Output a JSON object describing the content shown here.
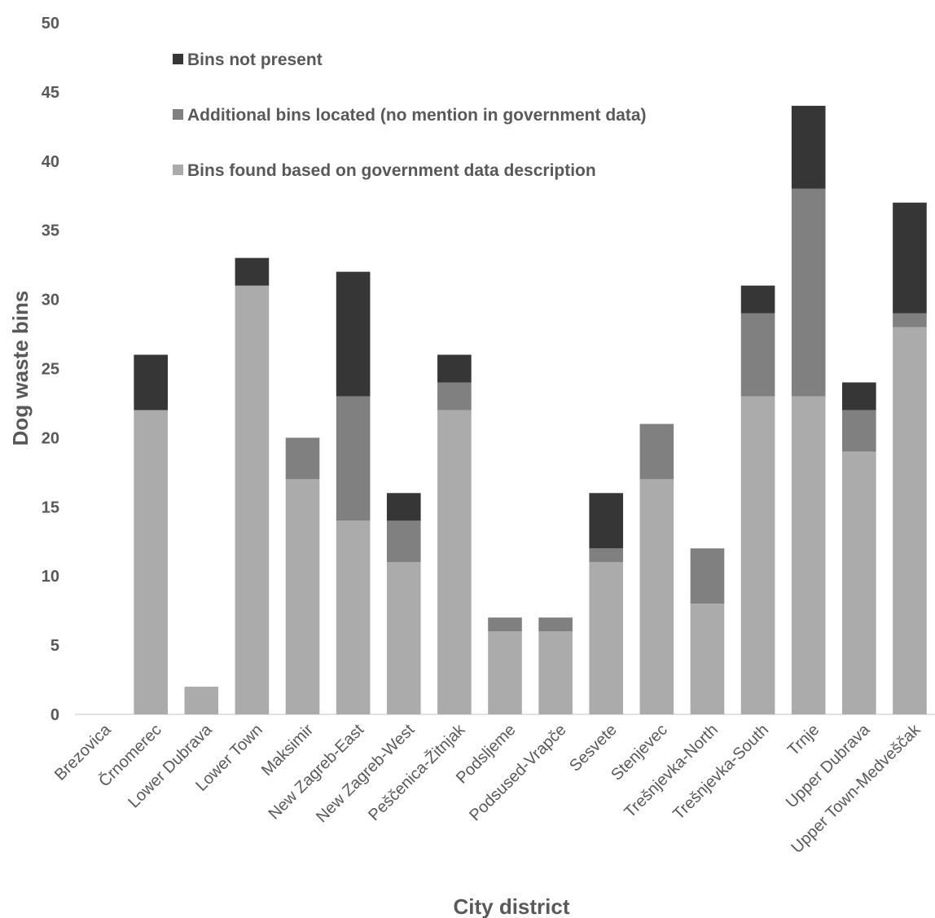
{
  "chart_data": {
    "type": "bar",
    "stacked": true,
    "categories": [
      "Brezovica",
      "Črnomerec",
      "Lower Dubrava",
      "Lower Town",
      "Maksimir",
      "New Zagreb-East",
      "New Zagreb-West",
      "Peščenica-Žitnjak",
      "Podsljeme",
      "Podsused-Vrapče",
      "Sesvete",
      "Stenjevec",
      "Trešnjevka-North",
      "Trešnjevka-South",
      "Trnje",
      "Upper Dubrava",
      "Upper Town-Medveščak"
    ],
    "series": [
      {
        "name": "Bins found based on government data description",
        "color": "#ababab",
        "values": [
          0,
          22,
          2,
          31,
          17,
          14,
          11,
          22,
          6,
          6,
          11,
          17,
          8,
          23,
          23,
          19,
          28
        ]
      },
      {
        "name": "Additional bins located (no mention in government data)",
        "color": "#808080",
        "values": [
          0,
          0,
          0,
          0,
          3,
          9,
          3,
          2,
          1,
          1,
          1,
          4,
          4,
          6,
          15,
          3,
          1
        ]
      },
      {
        "name": "Bins not present",
        "color": "#363636",
        "values": [
          0,
          4,
          0,
          2,
          0,
          9,
          2,
          2,
          0,
          0,
          4,
          0,
          0,
          2,
          6,
          2,
          8
        ]
      }
    ],
    "legend_order": [
      "Bins not present",
      "Additional bins located (no mention in government data)",
      "Bins found based on government data description"
    ],
    "xlabel": "City district",
    "ylabel": "Dog waste bins",
    "ylim": [
      0,
      50
    ],
    "yticks": [
      0,
      5,
      10,
      15,
      20,
      25,
      30,
      35,
      40,
      45,
      50
    ],
    "grid": false,
    "legend_position": "top-left"
  }
}
